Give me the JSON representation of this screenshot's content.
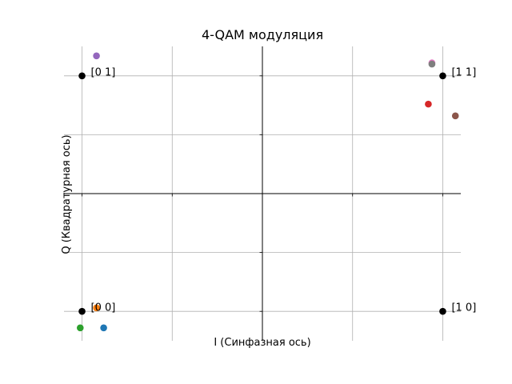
{
  "chart_data": {
    "type": "scatter",
    "title": "4-QAM модуляция",
    "xlabel": "I (Синфазная ось)",
    "ylabel": "Q (Квадратурная ось)",
    "xlim": [
      -1.1,
      1.1
    ],
    "ylim": [
      -1.25,
      1.25
    ],
    "grid": true,
    "constellation": {
      "color": "#000000",
      "points": [
        {
          "x": -1,
          "y": -1,
          "label": "[0 0]"
        },
        {
          "x": -1,
          "y": 1,
          "label": "[0 1]"
        },
        {
          "x": 1,
          "y": -1,
          "label": "[1 0]"
        },
        {
          "x": 1,
          "y": 1,
          "label": "[1 1]"
        }
      ]
    },
    "received": [
      {
        "x": -0.88,
        "y": -1.14,
        "color": "#1f77b4"
      },
      {
        "x": -0.92,
        "y": -0.97,
        "color": "#ff7f0e"
      },
      {
        "x": -1.01,
        "y": -1.14,
        "color": "#2ca02c"
      },
      {
        "x": 0.92,
        "y": 0.76,
        "color": "#d62728"
      },
      {
        "x": -0.92,
        "y": 1.17,
        "color": "#9467bd"
      },
      {
        "x": 1.07,
        "y": 0.66,
        "color": "#8c564b"
      },
      {
        "x": 0.94,
        "y": 1.11,
        "color": "#e377c2"
      },
      {
        "x": 0.94,
        "y": 1.1,
        "color": "#7f7f7f"
      }
    ]
  }
}
